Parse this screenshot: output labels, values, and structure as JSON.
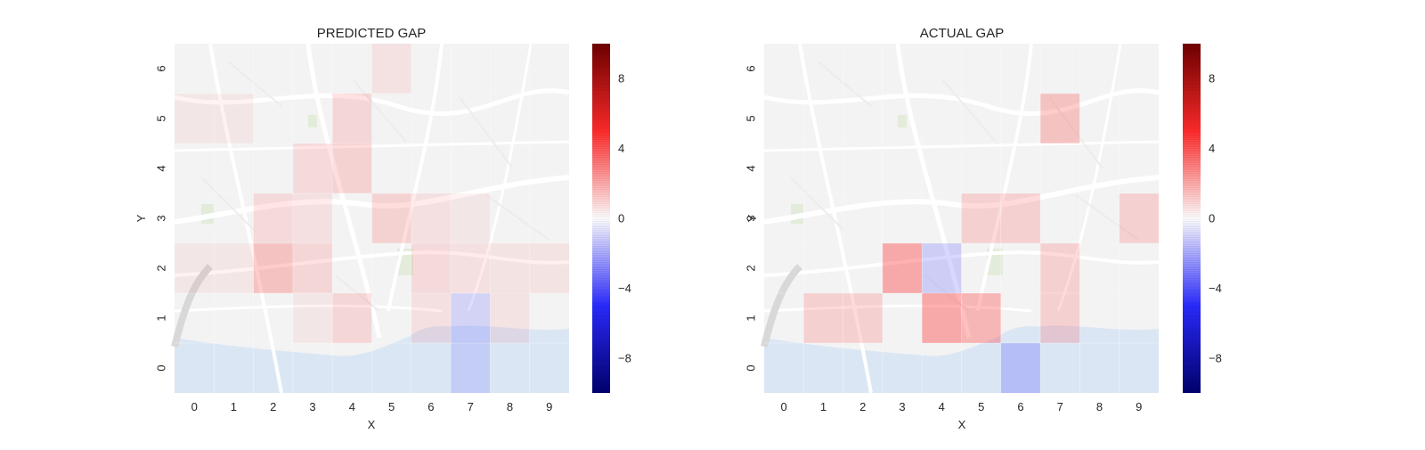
{
  "chart_data": [
    {
      "type": "heatmap",
      "title": "PREDICTED GAP",
      "xlabel": "X",
      "ylabel": "Y",
      "x_ticks": [
        "0",
        "1",
        "2",
        "3",
        "4",
        "5",
        "6",
        "7",
        "8",
        "9"
      ],
      "y_ticks": [
        "0",
        "1",
        "2",
        "3",
        "4",
        "5",
        "6"
      ],
      "zlim": [
        -10,
        10
      ],
      "colorbar_ticks": [
        "8",
        "4",
        "0",
        "−4",
        "−8"
      ],
      "colorbar_values": [
        8,
        4,
        0,
        -4,
        -8
      ],
      "background": "faded street map",
      "values": [
        [
          0,
          0,
          0,
          0,
          0,
          0,
          0,
          -1.0,
          0,
          0
        ],
        [
          0,
          0,
          0,
          0.3,
          1.5,
          0,
          0.8,
          -1.5,
          0.5,
          0
        ],
        [
          0.3,
          0.3,
          3.0,
          1.5,
          0,
          0,
          1.2,
          0.8,
          0.5,
          0.5
        ],
        [
          0,
          0,
          1.2,
          0.8,
          0,
          1.8,
          0.8,
          0.3,
          0,
          0
        ],
        [
          0,
          0,
          0,
          1.2,
          1.8,
          0,
          0,
          0,
          0,
          0
        ],
        [
          0.3,
          0.3,
          0,
          0,
          1.5,
          0,
          0,
          0,
          0,
          0
        ],
        [
          0,
          0,
          0,
          0,
          0,
          0.6,
          0,
          0,
          0,
          0
        ]
      ]
    },
    {
      "type": "heatmap",
      "title": "ACTUAL GAP",
      "xlabel": "X",
      "ylabel": "Y",
      "x_ticks": [
        "0",
        "1",
        "2",
        "3",
        "4",
        "5",
        "6",
        "7",
        "8",
        "9"
      ],
      "y_ticks": [
        "0",
        "1",
        "2",
        "3",
        "4",
        "5",
        "6"
      ],
      "zlim": [
        -10,
        10
      ],
      "colorbar_ticks": [
        "8",
        "4",
        "0",
        "−4",
        "−8"
      ],
      "colorbar_values": [
        8,
        4,
        0,
        -4,
        -8
      ],
      "background": "faded street map",
      "values": [
        [
          0,
          0,
          0,
          0,
          0,
          0,
          -2.5,
          0,
          0,
          0
        ],
        [
          0,
          2.0,
          2.0,
          0,
          5.0,
          4.0,
          0,
          2.0,
          0,
          0
        ],
        [
          0,
          0,
          0,
          5.0,
          -2.0,
          0,
          0,
          2.0,
          0,
          0
        ],
        [
          0,
          0,
          0,
          0,
          0,
          2.0,
          2.0,
          0,
          0,
          2.0
        ],
        [
          0,
          0,
          0,
          0,
          0,
          0,
          0,
          0,
          0,
          0
        ],
        [
          0,
          0,
          0,
          0,
          0,
          0,
          0,
          3.0,
          0,
          0
        ],
        [
          0,
          0,
          0,
          0,
          0,
          0,
          0,
          0,
          0,
          0
        ]
      ]
    }
  ]
}
